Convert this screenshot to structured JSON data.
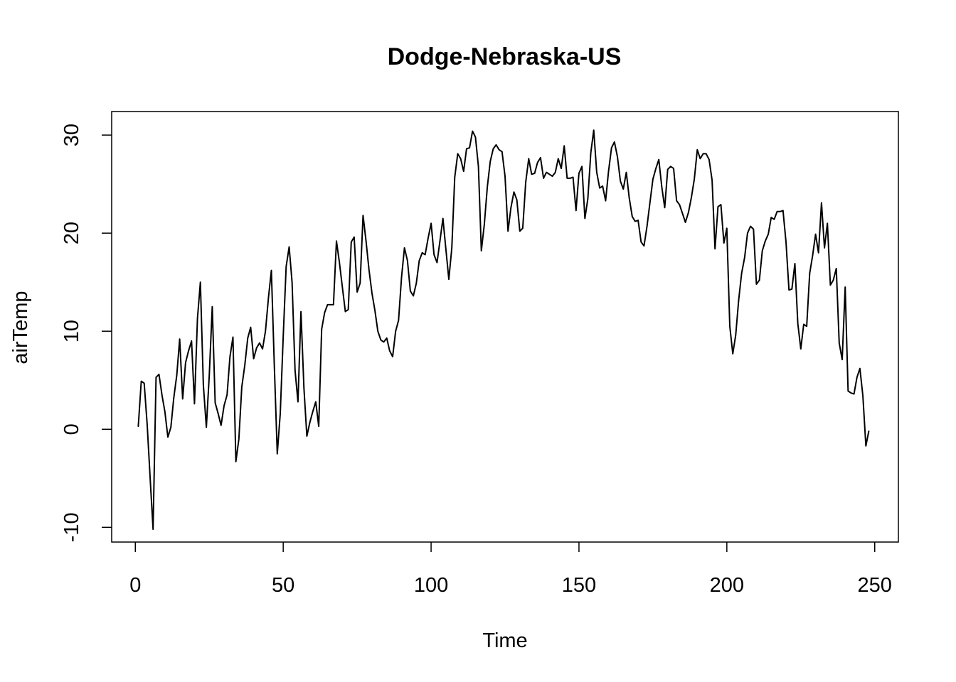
{
  "chart_data": {
    "type": "line",
    "title": "Dodge-Nebraska-US",
    "xlabel": "Time",
    "ylabel": "airTemp",
    "xlim": [
      -8,
      258
    ],
    "ylim": [
      -11.5,
      32.4
    ],
    "xticks": [
      0,
      50,
      100,
      150,
      200,
      250
    ],
    "yticks": [
      -10,
      0,
      10,
      20,
      30
    ],
    "xtick_labels": [
      "0",
      "50",
      "100",
      "150",
      "200",
      "250"
    ],
    "ytick_labels": [
      "-10",
      "0",
      "10",
      "20",
      "30"
    ],
    "grid": false,
    "series": [
      {
        "color": "#000000",
        "x": [
          1,
          2,
          3,
          4,
          5,
          6,
          7,
          8,
          9,
          10,
          11,
          12,
          13,
          14,
          15,
          16,
          17,
          18,
          19,
          20,
          21,
          22,
          23,
          24,
          25,
          26,
          27,
          28,
          29,
          30,
          31,
          32,
          33,
          34,
          35,
          36,
          37,
          38,
          39,
          40,
          41,
          42,
          43,
          44,
          45,
          46,
          47,
          48,
          49,
          50,
          51,
          52,
          53,
          54,
          55,
          56,
          57,
          58,
          59,
          60,
          61,
          62,
          63,
          64,
          65,
          66,
          67,
          68,
          69,
          70,
          71,
          72,
          73,
          74,
          75,
          76,
          77,
          78,
          79,
          80,
          81,
          82,
          83,
          84,
          85,
          86,
          87,
          88,
          89,
          90,
          91,
          92,
          93,
          94,
          95,
          96,
          97,
          98,
          99,
          100,
          101,
          102,
          103,
          104,
          105,
          106,
          107,
          108,
          109,
          110,
          111,
          112,
          113,
          114,
          115,
          116,
          117,
          118,
          119,
          120,
          121,
          122,
          123,
          124,
          125,
          126,
          127,
          128,
          129,
          130,
          131,
          132,
          133,
          134,
          135,
          136,
          137,
          138,
          139,
          140,
          141,
          142,
          143,
          144,
          145,
          146,
          147,
          148,
          149,
          150,
          151,
          152,
          153,
          154,
          155,
          156,
          157,
          158,
          159,
          160,
          161,
          162,
          163,
          164,
          165,
          166,
          167,
          168,
          169,
          170,
          171,
          172,
          173,
          174,
          175,
          176,
          177,
          178,
          179,
          180,
          181,
          182,
          183,
          184,
          185,
          186,
          187,
          188,
          189,
          190,
          191,
          192,
          193,
          194,
          195,
          196,
          197,
          198,
          199,
          200,
          201,
          202,
          203,
          204,
          205,
          206,
          207,
          208,
          209,
          210,
          211,
          212,
          213,
          214,
          215,
          216,
          217,
          218,
          219,
          220,
          221,
          222,
          223,
          224,
          225,
          226,
          227,
          228,
          229,
          230,
          231,
          232,
          233,
          234,
          235,
          236,
          237,
          238,
          239,
          240,
          241,
          242,
          243,
          244,
          245,
          246,
          247,
          248
        ],
        "values": [
          0.3,
          4.9,
          4.7,
          0.5,
          -5,
          -10.2,
          5.3,
          5.6,
          3.5,
          1.8,
          -0.8,
          0.2,
          3.2,
          5.5,
          9.2,
          3.1,
          6.8,
          8,
          9,
          2.6,
          11.3,
          15,
          4.5,
          0.2,
          5.5,
          12.5,
          2.7,
          1.6,
          0.4,
          2.4,
          3.5,
          7.4,
          9.4,
          -3.3,
          -1,
          4.3,
          6.5,
          9.3,
          10.4,
          7.2,
          8.3,
          8.8,
          8.2,
          10,
          13.4,
          16.2,
          6.4,
          -2.5,
          1.6,
          9.5,
          16.6,
          18.6,
          15,
          6,
          2.8,
          12,
          4.2,
          -0.7,
          0.7,
          1.8,
          2.8,
          0.3,
          10.2,
          11.9,
          12.7,
          12.7,
          12.7,
          19.2,
          17,
          14.5,
          12,
          12.2,
          19.1,
          19.6,
          14,
          14.9,
          21.8,
          19.2,
          16.3,
          13.9,
          12.1,
          10,
          9.1,
          8.9,
          9.3,
          8,
          7.4,
          10,
          11.1,
          15.5,
          18.5,
          17.2,
          14.1,
          13.6,
          14.9,
          17.2,
          18,
          17.8,
          19.5,
          21,
          17.8,
          17,
          19.2,
          21.5,
          18.4,
          15.3,
          18.5,
          25.7,
          28.1,
          27.6,
          26.3,
          28.6,
          28.7,
          30.4,
          29.8,
          26.8,
          18.2,
          20.9,
          24.7,
          27.3,
          28.6,
          29,
          28.5,
          28.3,
          25.8,
          20.2,
          22.6,
          24.2,
          23.4,
          20.2,
          20.5,
          25.2,
          27.6,
          26,
          26.1,
          27.2,
          27.7,
          25.6,
          26.2,
          26,
          25.8,
          26.2,
          27.6,
          26.6,
          28.9,
          25.6,
          25.6,
          25.7,
          22.3,
          26.1,
          26.8,
          21.5,
          23.5,
          28.2,
          30.5,
          26.2,
          24.6,
          24.8,
          23.3,
          26.3,
          28.7,
          29.3,
          27.8,
          25.3,
          24.5,
          26.2,
          23.6,
          21.7,
          21.2,
          21.3,
          19.1,
          18.7,
          20.7,
          23.1,
          25.5,
          26.6,
          27.5,
          24.7,
          22.6,
          26.5,
          26.8,
          26.6,
          23.3,
          22.9,
          22,
          21.1,
          22.1,
          23.6,
          25.5,
          28.5,
          27.6,
          28.1,
          28.1,
          27.5,
          25.4,
          18.4,
          22.7,
          22.9,
          19,
          20.5,
          10.5,
          7.7,
          9.6,
          13.2,
          15.9,
          17.5,
          20,
          20.7,
          20.4,
          14.8,
          15.2,
          18.2,
          19.2,
          19.9,
          21.6,
          21.4,
          22.2,
          22.2,
          22.3,
          19.1,
          14.2,
          14.3,
          16.9,
          10.8,
          8.2,
          10.7,
          10.5,
          15.9,
          17.7,
          19.9,
          18,
          23.1,
          18.5,
          21,
          14.7,
          15.2,
          16.4,
          8.8,
          7.1,
          14.5,
          3.9,
          3.7,
          3.6,
          5.3,
          6.2,
          3.4,
          -1.7,
          -0.2
        ]
      }
    ]
  }
}
